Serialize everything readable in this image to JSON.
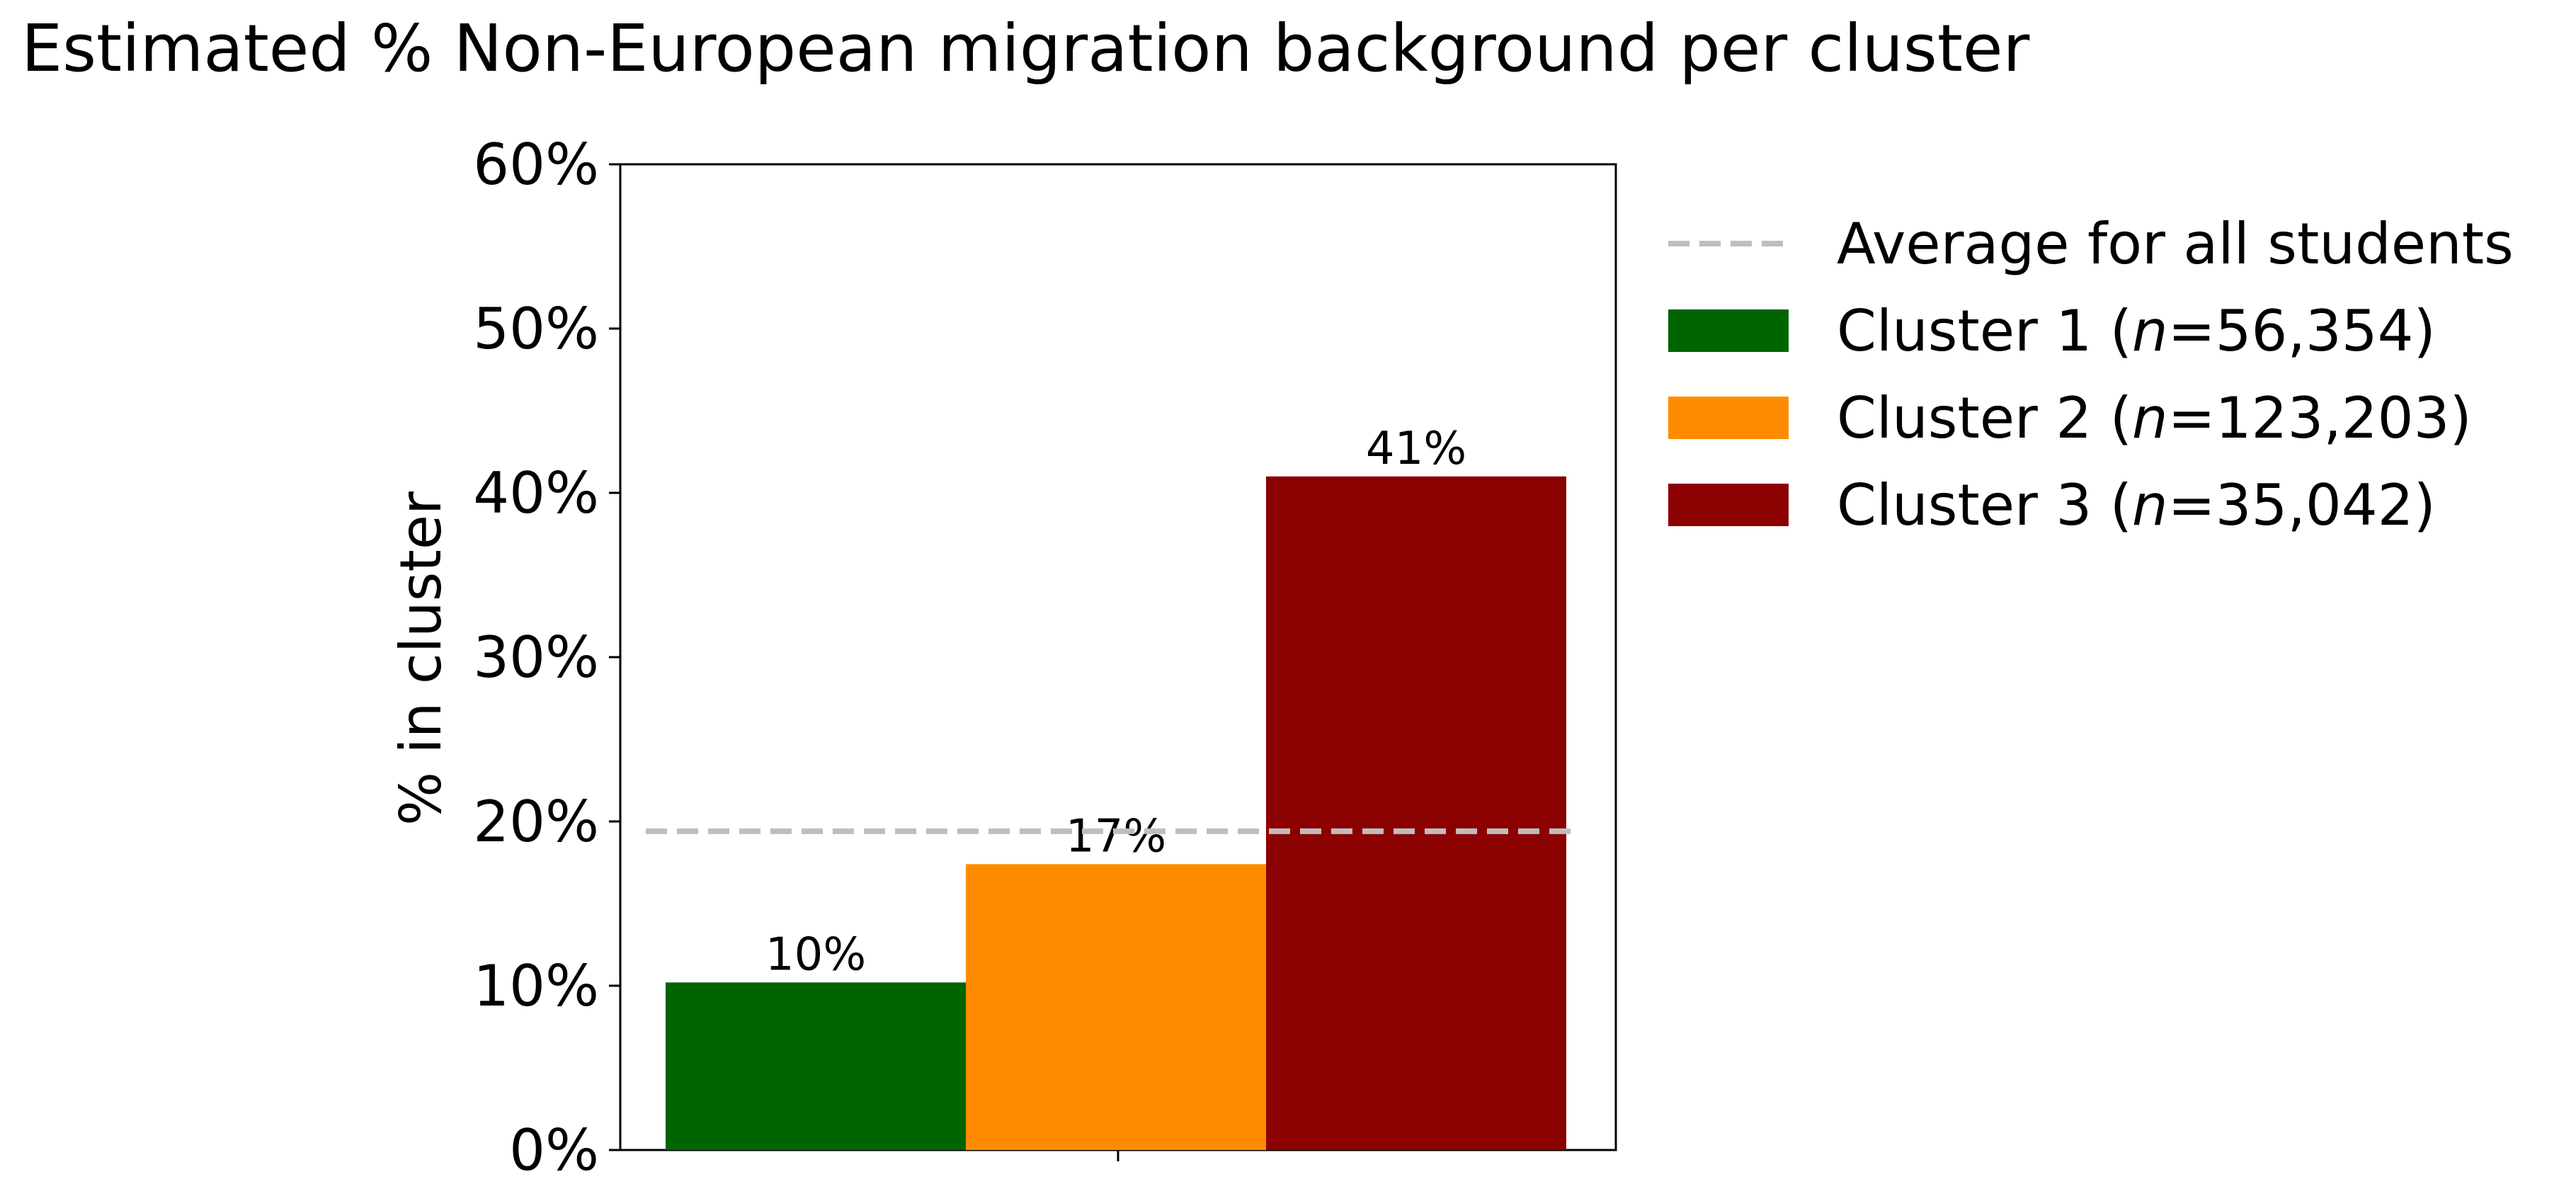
{
  "chart_data": {
    "type": "bar",
    "title": "Estimated % Non-European migration background per cluster",
    "ylabel": "% in cluster",
    "xlabel": "",
    "ylim": [
      0,
      60
    ],
    "yticks": [
      "0%",
      "10%",
      "20%",
      "30%",
      "40%",
      "50%",
      "60%"
    ],
    "ytick_values": [
      0,
      10,
      20,
      30,
      40,
      50,
      60
    ],
    "grid": false,
    "legend_position": "outside-right",
    "series": [
      {
        "name": "Cluster 1",
        "n_label": "n",
        "n_value": "=56,354",
        "prefix": "Cluster 1 (",
        "suffix": ")",
        "value": 10.2,
        "label": "10%",
        "color": "#006400"
      },
      {
        "name": "Cluster 2",
        "n_label": "n",
        "n_value": "=123,203",
        "prefix": "Cluster 2 (",
        "suffix": ")",
        "value": 17.4,
        "label": "17%",
        "color": "#FF8C00"
      },
      {
        "name": "Cluster 3",
        "n_label": "n",
        "n_value": "=35,042",
        "prefix": "Cluster 3 (",
        "suffix": ")",
        "value": 41.0,
        "label": "41%",
        "color": "#8B0000"
      }
    ],
    "reference_line": {
      "name": "Average for all students",
      "value": 19.4,
      "color": "#BEBEBE",
      "style": "dashed"
    }
  }
}
